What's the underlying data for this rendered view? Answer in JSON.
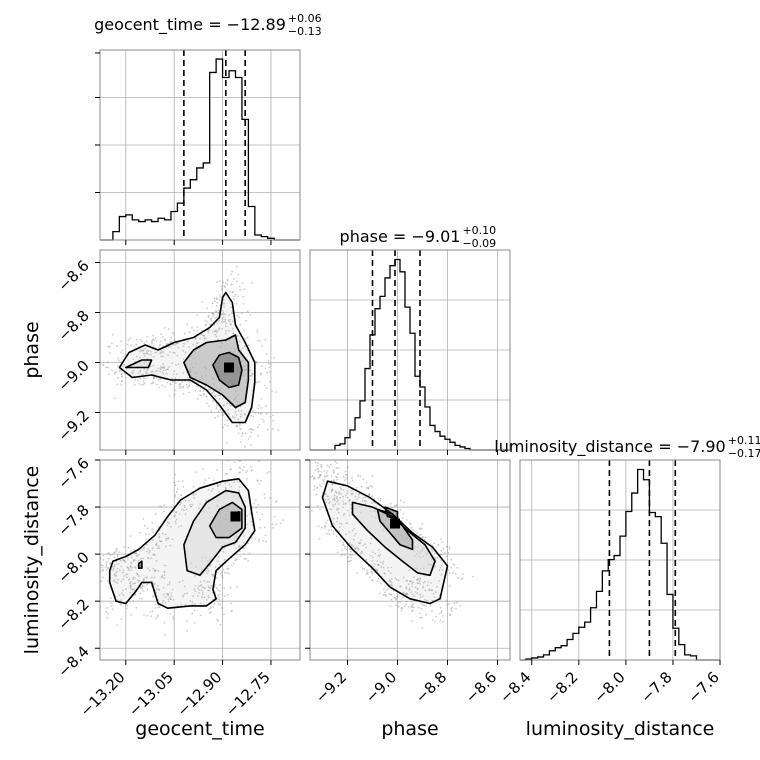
{
  "chart_data": {
    "type": "corner",
    "parameters": [
      "geocent_time",
      "phase",
      "luminosity_distance"
    ],
    "axis_labels": {
      "geocent_time": "geocent_time",
      "phase": "phase",
      "luminosity_distance": "luminosity_distance"
    },
    "titles": [
      {
        "param": "geocent_time",
        "prefix": "geocent_time = ",
        "median": "−12.89",
        "plus": "+0.06",
        "minus": "−0.13"
      },
      {
        "param": "phase",
        "prefix": "phase = ",
        "median": "−9.01",
        "plus": "+0.10",
        "minus": "−0.09"
      },
      {
        "param": "luminosity_distance",
        "prefix": "luminosity_distance = ",
        "median": "−7.90",
        "plus": "+0.11",
        "minus": "−0.17"
      }
    ],
    "ranges": {
      "geocent_time": [
        -13.28,
        -12.66
      ],
      "phase": [
        -9.35,
        -8.55
      ],
      "luminosity_distance": [
        -8.45,
        -7.6
      ]
    },
    "ticks": {
      "geocent_time": [
        -13.2,
        -13.05,
        -12.9,
        -12.75
      ],
      "phase": [
        -9.2,
        -9.0,
        -8.8,
        -8.6
      ],
      "luminosity_distance": [
        -8.4,
        -8.2,
        -8.0,
        -7.8,
        -7.6
      ]
    },
    "tick_labels": {
      "geocent_time": [
        "−13.20",
        "−13.05",
        "−12.90",
        "−12.75"
      ],
      "phase": [
        "−9.2",
        "−9.0",
        "−8.8",
        "−8.6"
      ],
      "luminosity_distance": [
        "−8.4",
        "−8.2",
        "−8.0",
        "−7.8",
        "−7.6"
      ]
    },
    "quantiles": {
      "geocent_time": [
        -13.02,
        -12.89,
        -12.83
      ],
      "phase": [
        -9.1,
        -9.01,
        -8.91
      ],
      "luminosity_distance": [
        -8.07,
        -7.9,
        -7.79
      ]
    },
    "histograms": {
      "geocent_time": {
        "edges": [
          -13.28,
          -13.26,
          -13.24,
          -13.22,
          -13.2,
          -13.18,
          -13.16,
          -13.14,
          -13.12,
          -13.1,
          -13.08,
          -13.06,
          -13.04,
          -13.02,
          -13.0,
          -12.98,
          -12.96,
          -12.94,
          -12.92,
          -12.9,
          -12.88,
          -12.86,
          -12.84,
          -12.82,
          -12.8,
          -12.78,
          -12.76,
          -12.74,
          -12.72,
          -12.7,
          -12.68,
          -12.66
        ],
        "counts": [
          0,
          0,
          5,
          14,
          15,
          12,
          11,
          12,
          11,
          13,
          12,
          17,
          22,
          31,
          36,
          43,
          46,
          100,
          108,
          97,
          101,
          97,
          72,
          20,
          3,
          2,
          1,
          0,
          0,
          0,
          0
        ]
      },
      "phase": {
        "edges": [
          -9.35,
          -9.33,
          -9.31,
          -9.29,
          -9.27,
          -9.25,
          -9.23,
          -9.21,
          -9.19,
          -9.17,
          -9.15,
          -9.13,
          -9.11,
          -9.09,
          -9.07,
          -9.05,
          -9.03,
          -9.01,
          -8.99,
          -8.97,
          -8.95,
          -8.93,
          -8.91,
          -8.89,
          -8.87,
          -8.85,
          -8.83,
          -8.81,
          -8.79,
          -8.77,
          -8.75,
          -8.73,
          -8.71,
          -8.69,
          -8.67,
          -8.65,
          -8.63,
          -8.61,
          -8.59,
          -8.57,
          -8.55
        ],
        "counts": [
          0,
          0,
          0,
          0,
          0,
          3,
          4,
          8,
          13,
          21,
          32,
          53,
          75,
          92,
          100,
          112,
          120,
          124,
          116,
          93,
          76,
          48,
          41,
          28,
          16,
          12,
          9,
          7,
          5,
          3,
          2,
          1,
          0,
          0,
          0,
          0,
          0,
          0,
          0,
          0
        ]
      },
      "luminosity_distance": {
        "edges": [
          -8.45,
          -8.425,
          -8.4,
          -8.375,
          -8.35,
          -8.325,
          -8.3,
          -8.275,
          -8.25,
          -8.225,
          -8.2,
          -8.175,
          -8.15,
          -8.125,
          -8.1,
          -8.075,
          -8.05,
          -8.025,
          -8.0,
          -7.975,
          -7.95,
          -7.925,
          -7.9,
          -7.875,
          -7.85,
          -7.825,
          -7.8,
          -7.775,
          -7.75,
          -7.725,
          -7.7,
          -7.675,
          -7.65,
          -7.625,
          -7.6
        ],
        "counts": [
          0,
          1,
          2,
          3,
          5,
          9,
          12,
          14,
          20,
          26,
          32,
          37,
          51,
          67,
          87,
          98,
          102,
          121,
          145,
          163,
          186,
          176,
          144,
          140,
          114,
          64,
          31,
          15,
          5,
          4,
          0,
          0,
          0,
          0
        ]
      }
    },
    "density2d": [
      {
        "x": "geocent_time",
        "y": "phase",
        "contours": [
          [
            [
              -13.22,
              -9.02
            ],
            [
              -13.19,
              -8.96
            ],
            [
              -13.14,
              -8.93
            ],
            [
              -13.1,
              -8.95
            ],
            [
              -13.05,
              -8.92
            ],
            [
              -12.99,
              -8.9
            ],
            [
              -12.94,
              -8.86
            ],
            [
              -12.91,
              -8.82
            ],
            [
              -12.9,
              -8.74
            ],
            [
              -12.89,
              -8.72
            ],
            [
              -12.87,
              -8.76
            ],
            [
              -12.86,
              -8.85
            ],
            [
              -12.83,
              -8.92
            ],
            [
              -12.8,
              -9.0
            ],
            [
              -12.8,
              -9.08
            ],
            [
              -12.81,
              -9.18
            ],
            [
              -12.83,
              -9.24
            ],
            [
              -12.87,
              -9.24
            ],
            [
              -12.91,
              -9.17
            ],
            [
              -12.95,
              -9.11
            ],
            [
              -13.0,
              -9.07
            ],
            [
              -13.06,
              -9.07
            ],
            [
              -13.12,
              -9.05
            ],
            [
              -13.18,
              -9.06
            ],
            [
              -13.22,
              -9.02
            ]
          ],
          [
            [
              -13.2,
              -9.02
            ],
            [
              -13.15,
              -8.99
            ],
            [
              -13.12,
              -8.99
            ],
            [
              -13.13,
              -9.02
            ],
            [
              -13.2,
              -9.02
            ]
          ],
          [
            [
              -13.02,
              -9.0
            ],
            [
              -12.99,
              -8.95
            ],
            [
              -12.95,
              -8.92
            ],
            [
              -12.89,
              -8.91
            ],
            [
              -12.86,
              -8.89
            ],
            [
              -12.85,
              -8.95
            ],
            [
              -12.82,
              -9.0
            ],
            [
              -12.82,
              -9.07
            ],
            [
              -12.83,
              -9.16
            ],
            [
              -12.86,
              -9.18
            ],
            [
              -12.9,
              -9.13
            ],
            [
              -12.95,
              -9.09
            ],
            [
              -13.0,
              -9.06
            ],
            [
              -13.02,
              -9.0
            ]
          ],
          [
            [
              -12.93,
              -9.01
            ],
            [
              -12.91,
              -8.97
            ],
            [
              -12.88,
              -8.96
            ],
            [
              -12.85,
              -8.98
            ],
            [
              -12.84,
              -9.03
            ],
            [
              -12.85,
              -9.09
            ],
            [
              -12.88,
              -9.1
            ],
            [
              -12.91,
              -9.07
            ],
            [
              -12.93,
              -9.01
            ]
          ]
        ],
        "density_peak": [
          -12.88,
          -9.02
        ]
      },
      {
        "x": "geocent_time",
        "y": "luminosity_distance",
        "contours": [
          [
            [
              -13.25,
              -8.07
            ],
            [
              -13.24,
              -8.03
            ],
            [
              -13.2,
              -8.01
            ],
            [
              -13.16,
              -7.98
            ],
            [
              -13.11,
              -7.92
            ],
            [
              -13.07,
              -7.84
            ],
            [
              -13.03,
              -7.77
            ],
            [
              -12.97,
              -7.72
            ],
            [
              -12.9,
              -7.69
            ],
            [
              -12.85,
              -7.68
            ],
            [
              -12.82,
              -7.73
            ],
            [
              -12.81,
              -7.82
            ],
            [
              -12.8,
              -7.9
            ],
            [
              -12.83,
              -7.96
            ],
            [
              -12.88,
              -8.02
            ],
            [
              -12.92,
              -8.07
            ],
            [
              -12.93,
              -8.15
            ],
            [
              -12.92,
              -8.19
            ],
            [
              -12.95,
              -8.22
            ],
            [
              -13.0,
              -8.22
            ],
            [
              -13.07,
              -8.23
            ],
            [
              -13.1,
              -8.21
            ],
            [
              -13.12,
              -8.12
            ],
            [
              -13.15,
              -8.12
            ],
            [
              -13.17,
              -8.16
            ],
            [
              -13.2,
              -8.21
            ],
            [
              -13.23,
              -8.2
            ],
            [
              -13.25,
              -8.12
            ],
            [
              -13.25,
              -8.07
            ]
          ],
          [
            [
              -13.02,
              -7.96
            ],
            [
              -12.99,
              -7.86
            ],
            [
              -12.95,
              -7.78
            ],
            [
              -12.89,
              -7.73
            ],
            [
              -12.85,
              -7.74
            ],
            [
              -12.83,
              -7.8
            ],
            [
              -12.83,
              -7.89
            ],
            [
              -12.86,
              -7.95
            ],
            [
              -12.9,
              -7.97
            ],
            [
              -12.94,
              -8.04
            ],
            [
              -12.97,
              -8.09
            ],
            [
              -13.01,
              -8.07
            ],
            [
              -13.02,
              -7.96
            ]
          ],
          [
            [
              -12.94,
              -7.88
            ],
            [
              -12.91,
              -7.81
            ],
            [
              -12.87,
              -7.78
            ],
            [
              -12.84,
              -7.81
            ],
            [
              -12.84,
              -7.89
            ],
            [
              -12.88,
              -7.93
            ],
            [
              -12.92,
              -7.93
            ],
            [
              -12.94,
              -7.88
            ]
          ],
          [
            [
              -12.87,
              -7.83
            ],
            [
              -12.85,
              -7.82
            ],
            [
              -12.85,
              -7.85
            ],
            [
              -12.87,
              -7.85
            ],
            [
              -12.87,
              -7.83
            ]
          ],
          [
            [
              -13.16,
              -8.04
            ],
            [
              -13.15,
              -8.03
            ],
            [
              -13.15,
              -8.06
            ],
            [
              -13.16,
              -8.06
            ],
            [
              -13.16,
              -8.04
            ]
          ]
        ],
        "density_peak": [
          -12.86,
          -7.84
        ]
      },
      {
        "x": "phase",
        "y": "luminosity_distance",
        "contours": [
          [
            [
              -9.28,
              -7.69
            ],
            [
              -9.2,
              -7.71
            ],
            [
              -9.11,
              -7.76
            ],
            [
              -9.02,
              -7.83
            ],
            [
              -8.94,
              -7.91
            ],
            [
              -8.86,
              -7.97
            ],
            [
              -8.8,
              -8.05
            ],
            [
              -8.83,
              -8.19
            ],
            [
              -8.87,
              -8.21
            ],
            [
              -8.95,
              -8.19
            ],
            [
              -9.03,
              -8.14
            ],
            [
              -9.1,
              -8.06
            ],
            [
              -9.18,
              -7.98
            ],
            [
              -9.26,
              -7.88
            ],
            [
              -9.3,
              -7.76
            ],
            [
              -9.28,
              -7.69
            ]
          ],
          [
            [
              -9.18,
              -7.78
            ],
            [
              -9.1,
              -7.8
            ],
            [
              -9.02,
              -7.84
            ],
            [
              -8.96,
              -7.9
            ],
            [
              -8.89,
              -7.96
            ],
            [
              -8.85,
              -8.03
            ],
            [
              -8.87,
              -8.09
            ],
            [
              -8.92,
              -8.08
            ],
            [
              -8.98,
              -8.03
            ],
            [
              -9.05,
              -7.97
            ],
            [
              -9.12,
              -7.9
            ],
            [
              -9.18,
              -7.83
            ],
            [
              -9.18,
              -7.78
            ]
          ],
          [
            [
              -9.08,
              -7.81
            ],
            [
              -9.02,
              -7.83
            ],
            [
              -8.98,
              -7.88
            ],
            [
              -8.94,
              -7.94
            ],
            [
              -8.94,
              -7.98
            ],
            [
              -8.99,
              -7.96
            ],
            [
              -9.03,
              -7.91
            ],
            [
              -9.07,
              -7.86
            ],
            [
              -9.08,
              -7.81
            ]
          ],
          [
            [
              -9.05,
              -7.8
            ],
            [
              -9.0,
              -7.82
            ],
            [
              -9.0,
              -7.85
            ],
            [
              -9.04,
              -7.84
            ],
            [
              -9.05,
              -7.8
            ]
          ]
        ],
        "density_peak": [
          -9.01,
          -7.87
        ]
      }
    ]
  }
}
